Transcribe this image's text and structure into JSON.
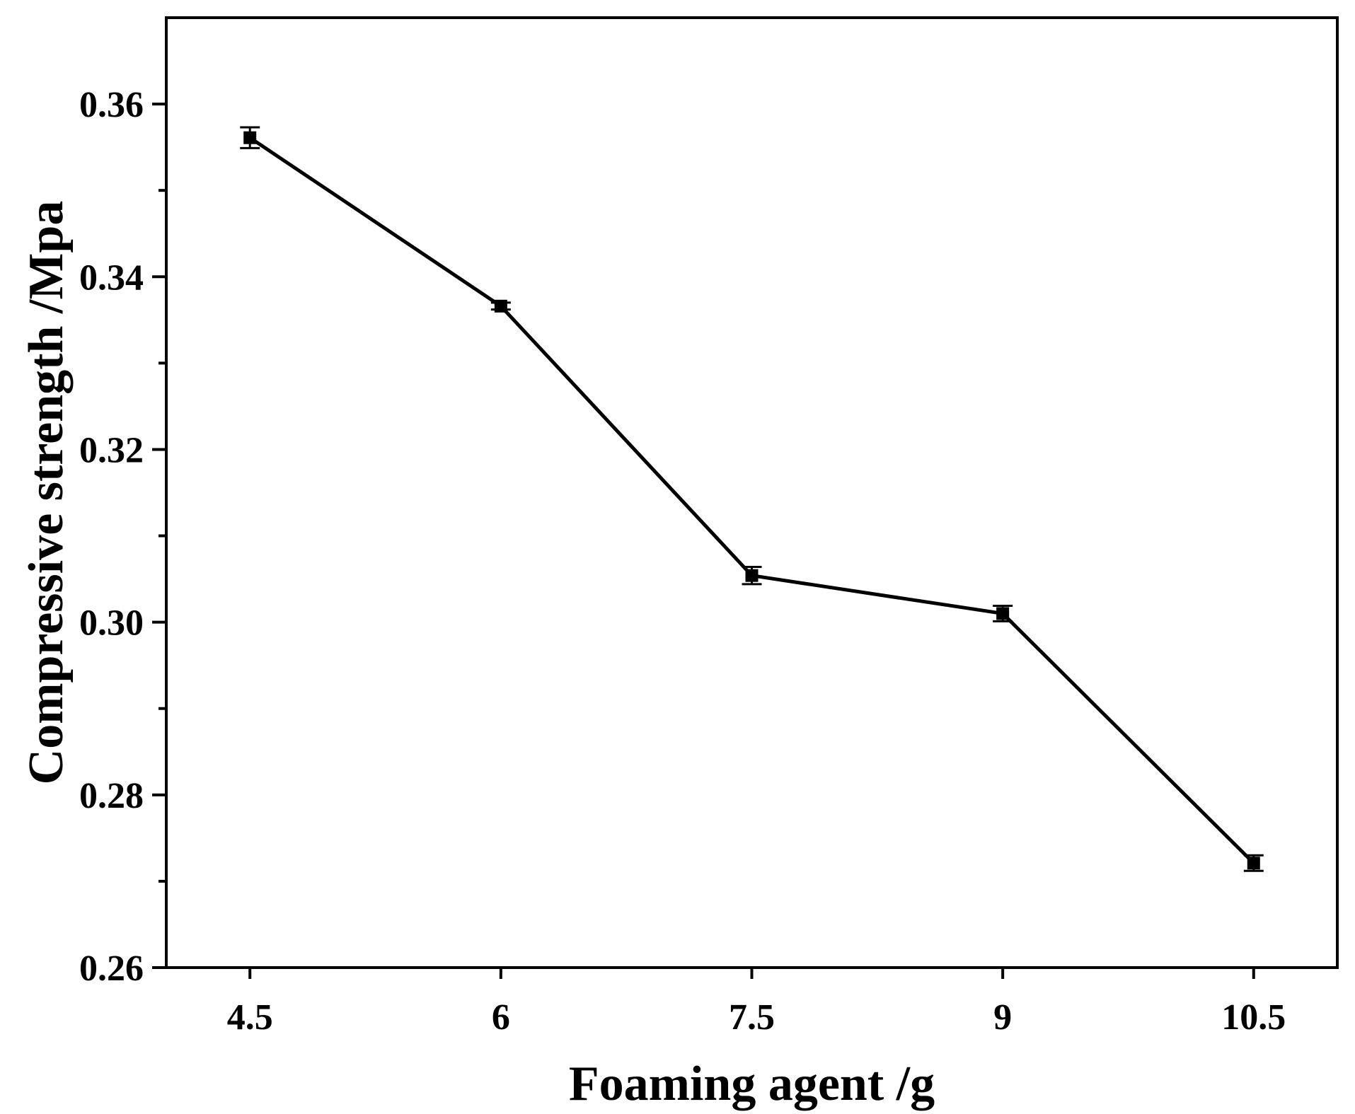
{
  "chart_data": {
    "type": "line",
    "title": "",
    "xlabel": "Foaming agent /g",
    "ylabel": "Compressive strength /Mpa",
    "x": [
      4.5,
      6,
      7.5,
      9,
      10.5
    ],
    "x_tick_labels": [
      "4.5",
      "6",
      "7.5",
      "9",
      "10.5"
    ],
    "y_tick_labels": [
      "0.26",
      "0.28",
      "0.30",
      "0.32",
      "0.34",
      "0.36"
    ],
    "y_ticks": [
      0.26,
      0.28,
      0.3,
      0.32,
      0.34,
      0.36
    ],
    "xlim": [
      4.0,
      11.0
    ],
    "ylim": [
      0.26,
      0.37
    ],
    "grid": false,
    "series": [
      {
        "values": [
          0.3561,
          0.3366,
          0.3054,
          0.301,
          0.2721
        ],
        "errors": [
          0.0012,
          0.0004,
          0.001,
          0.0009,
          0.0009
        ],
        "color": "#000000",
        "marker": "square"
      }
    ]
  }
}
